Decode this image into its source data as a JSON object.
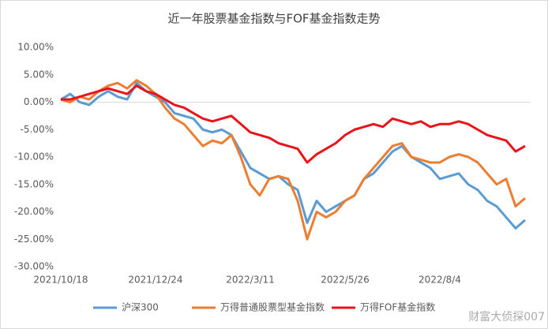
{
  "chart_data": {
    "type": "line",
    "title": "近一年股票基金指数与FOF基金指数走势",
    "categories": [
      "2021/10/18",
      null,
      null,
      null,
      null,
      null,
      null,
      null,
      null,
      null,
      "2021/12/24",
      null,
      null,
      null,
      null,
      null,
      null,
      null,
      null,
      null,
      "2022/3/11",
      null,
      null,
      null,
      null,
      null,
      null,
      null,
      null,
      null,
      "2022/5/26",
      null,
      null,
      null,
      null,
      null,
      null,
      null,
      null,
      null,
      "2022/8/4",
      null,
      null,
      null,
      null,
      null,
      null,
      null,
      null,
      null
    ],
    "series": [
      {
        "name": "沪深300",
        "color": "#5b9bd5",
        "values": [
          0.5,
          1.5,
          0,
          -0.5,
          1,
          2,
          1,
          0.5,
          3.5,
          2,
          1,
          0,
          -2,
          -2.5,
          -3,
          -5,
          -5.5,
          -5,
          -6,
          -9,
          -12,
          -13,
          -14,
          -13.5,
          -15,
          -16,
          -22,
          -18,
          -20,
          -19,
          -18,
          -17,
          -14,
          -13,
          -11,
          -9,
          -8,
          -10,
          -11,
          -12,
          -14,
          -13.5,
          -13,
          -15,
          -16,
          -18,
          -19,
          -21,
          -23,
          -21.5
        ]
      },
      {
        "name": "万得普通股票型基金指数",
        "color": "#ed7d31",
        "values": [
          0.5,
          0,
          1,
          0.5,
          2,
          3,
          3.5,
          2.5,
          4,
          3,
          1.5,
          -1,
          -3,
          -4,
          -6,
          -8,
          -7,
          -7.5,
          -6,
          -10,
          -15,
          -17,
          -14,
          -13.5,
          -14,
          -18,
          -25,
          -20,
          -21,
          -20,
          -18,
          -17,
          -14,
          -12,
          -10,
          -8,
          -7.5,
          -10,
          -10.5,
          -11,
          -11,
          -10,
          -9.5,
          -10,
          -11,
          -13,
          -15,
          -14,
          -19,
          -17.5
        ]
      },
      {
        "name": "万得FOF基金指数",
        "color": "#e8141a",
        "values": [
          0.5,
          0.5,
          1,
          1.5,
          2,
          2.5,
          2,
          1.5,
          3,
          2,
          1.5,
          0.5,
          -0.5,
          -1,
          -2,
          -3,
          -3.5,
          -3,
          -2.5,
          -4,
          -5.5,
          -6,
          -6.5,
          -7.5,
          -8,
          -8.5,
          -11,
          -9.5,
          -8.5,
          -7.5,
          -6,
          -5,
          -4.5,
          -4,
          -4.5,
          -3,
          -3.5,
          -4,
          -3.5,
          -4.5,
          -4,
          -4,
          -3.5,
          -4,
          -5,
          -6,
          -6.5,
          -7,
          -9,
          -8
        ]
      }
    ],
    "ylim": [
      -30,
      10
    ],
    "yticks": [
      {
        "value": -30,
        "label": "-30.00%"
      },
      {
        "value": -25,
        "label": "-25.00%"
      },
      {
        "value": -20,
        "label": "-20.00%"
      },
      {
        "value": -15,
        "label": "-15.00%"
      },
      {
        "value": -10,
        "label": "-10.00%"
      },
      {
        "value": -5,
        "label": "-5.00%"
      },
      {
        "value": 0,
        "label": "0.00%"
      },
      {
        "value": 5,
        "label": "5.00%"
      },
      {
        "value": 10,
        "label": "10.00%"
      }
    ],
    "legend": "bottom",
    "watermark": "财富大侦探007"
  }
}
